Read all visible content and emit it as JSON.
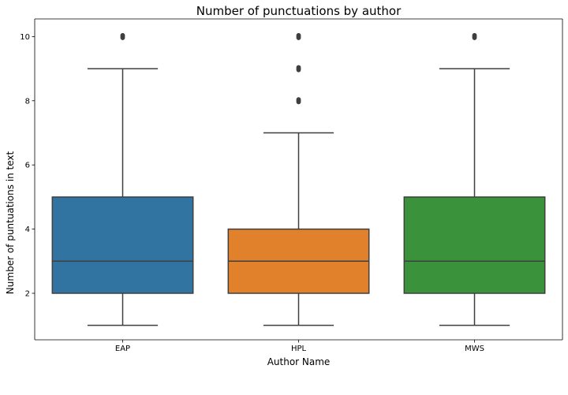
{
  "chart_data": {
    "type": "box",
    "title": "Number of punctuations by author",
    "xlabel": "Author Name",
    "ylabel": "Number of puntuations in text",
    "categories": [
      "EAP",
      "HPL",
      "MWS"
    ],
    "colors": [
      "#3274a1",
      "#e1812c",
      "#3a923a"
    ],
    "ylim": [
      0.55,
      10.55
    ],
    "yticks": [
      2,
      4,
      6,
      8,
      10
    ],
    "grid": false,
    "legend": "none",
    "boxes": [
      {
        "category": "EAP",
        "whisker_low": 1,
        "q1": 2,
        "median": 3,
        "q3": 5,
        "whisker_high": 9,
        "outliers": [
          10
        ]
      },
      {
        "category": "HPL",
        "whisker_low": 1,
        "q1": 2,
        "median": 3,
        "q3": 4,
        "whisker_high": 7,
        "outliers": [
          8,
          9,
          10
        ]
      },
      {
        "category": "MWS",
        "whisker_low": 1,
        "q1": 2,
        "median": 3,
        "q3": 5,
        "whisker_high": 9,
        "outliers": [
          10
        ]
      }
    ]
  }
}
